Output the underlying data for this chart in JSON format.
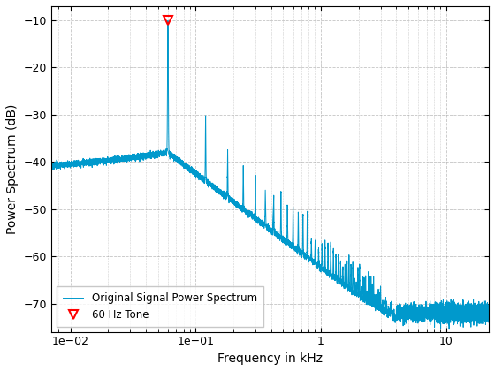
{
  "xlabel": "Frequency in kHz",
  "ylabel": "Power Spectrum (dB)",
  "xlim": [
    0.007,
    22
  ],
  "ylim": [
    -76,
    -7
  ],
  "yticks": [
    -10,
    -20,
    -30,
    -40,
    -50,
    -60,
    -70
  ],
  "line_color": "#0099CC",
  "marker_color": "#FF0000",
  "marker_freq_kHz": 0.06,
  "marker_db": -10.0,
  "legend_labels": [
    "Original Signal Power Spectrum",
    "60 Hz Tone"
  ],
  "background_color": "#ffffff",
  "grid_color": "#888888",
  "tone_freq_kHz": 0.06,
  "envelope_slope": -20,
  "noise_floor": -72
}
